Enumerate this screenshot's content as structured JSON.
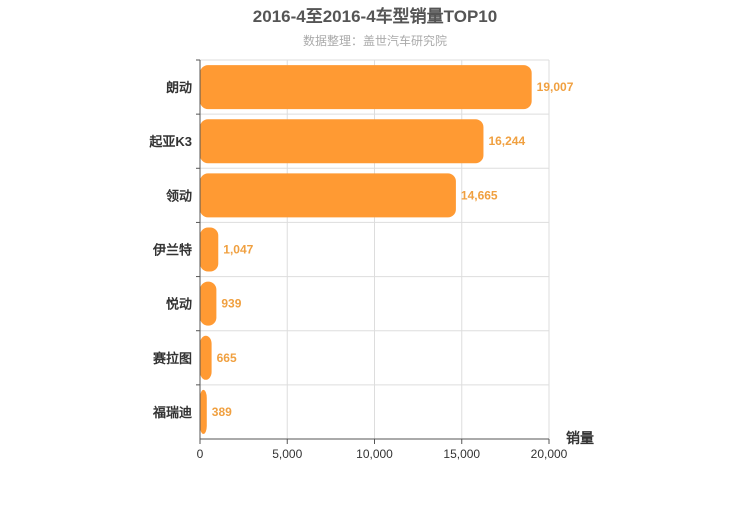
{
  "chart_data": {
    "type": "bar",
    "orientation": "horizontal",
    "title": "2016-4至2016-4车型销量TOP10",
    "subtitle": "数据整理：盖世汽车研究院",
    "xlabel": "销量",
    "ylabel": "",
    "categories": [
      "朗动",
      "起亚K3",
      "领动",
      "伊兰特",
      "悦动",
      "赛拉图",
      "福瑞迪"
    ],
    "values": [
      19007,
      16244,
      14665,
      1047,
      939,
      665,
      389
    ],
    "value_labels": [
      "19,007",
      "16,244",
      "14,665",
      "1,047",
      "939",
      "665",
      "389"
    ],
    "xlim": [
      0,
      20000
    ],
    "x_ticks": [
      0,
      5000,
      10000,
      15000,
      20000
    ],
    "x_tick_labels": [
      "0",
      "5,000",
      "10,000",
      "15,000",
      "20,000"
    ],
    "grid": true,
    "legend": "none",
    "colors": {
      "bar": "#ff9a33",
      "value_label": "#f0a040",
      "title": "#555555",
      "subtitle": "#aaaaaa",
      "grid": "#dddddd",
      "axis": "#555555",
      "category_label": "#333333"
    }
  }
}
